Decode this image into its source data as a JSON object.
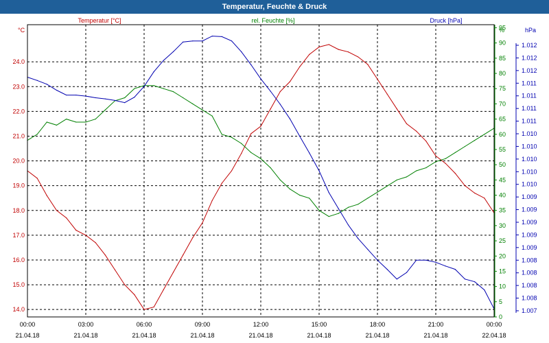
{
  "window": {
    "title": "Temperatur, Feuchte & Druck"
  },
  "chart_data": {
    "type": "line",
    "title": "Temperatur, Feuchte & Druck",
    "x": {
      "start_hour": 0,
      "end_hour": 24,
      "ticks": [
        {
          "hour": 0,
          "time": "00:00",
          "date": "21.04.18"
        },
        {
          "hour": 3,
          "time": "03:00",
          "date": "21.04.18"
        },
        {
          "hour": 6,
          "time": "06:00",
          "date": "21.04.18"
        },
        {
          "hour": 9,
          "time": "09:00",
          "date": "21.04.18"
        },
        {
          "hour": 12,
          "time": "12:00",
          "date": "21.04.18"
        },
        {
          "hour": 15,
          "time": "15:00",
          "date": "21.04.18"
        },
        {
          "hour": 18,
          "time": "18:00",
          "date": "21.04.18"
        },
        {
          "hour": 21,
          "time": "21:00",
          "date": "21.04.18"
        },
        {
          "hour": 24,
          "time": "00:00",
          "date": "22.04.18"
        }
      ]
    },
    "axes": {
      "temperature": {
        "unit": "°C",
        "label": "Temperatur [°C]",
        "color": "#c00000",
        "range": [
          13.7,
          25.5
        ],
        "ticks": [
          "14.0",
          "15.0",
          "16.0",
          "17.0",
          "18.0",
          "19.0",
          "20.0",
          "21.0",
          "22.0",
          "23.0",
          "24.0"
        ]
      },
      "humidity": {
        "unit": "%",
        "label": "rel. Feuchte [%]",
        "color": "#008000",
        "range": [
          0,
          96
        ],
        "ticks": [
          "0",
          "5",
          "10",
          "15",
          "20",
          "25",
          "30",
          "35",
          "40",
          "45",
          "50",
          "55",
          "60",
          "65",
          "70",
          "75",
          "80",
          "85",
          "90",
          "95"
        ]
      },
      "pressure": {
        "unit": "hPa",
        "label": "Druck [hPa]",
        "color": "#0000b0",
        "range": [
          1006.9,
          1012.3
        ],
        "ticks": [
          "1.007",
          "1.008",
          "1.008",
          "1.008",
          "1.008",
          "1.009",
          "1.009",
          "1.009",
          "1.009",
          "1.009",
          "1.010",
          "1.010",
          "1.010",
          "1.010",
          "1.010",
          "1.011",
          "1.011",
          "1.011",
          "1.011",
          "1.012",
          "1.012",
          "1.012"
        ]
      }
    },
    "series": [
      {
        "name": "Temperatur [°C]",
        "axis": "temperature",
        "color": "#c00000",
        "x_hours": [
          0,
          0.5,
          1,
          1.5,
          2,
          2.5,
          3,
          3.5,
          4,
          4.5,
          5,
          5.5,
          6,
          6.5,
          7,
          7.5,
          8,
          8.5,
          9,
          9.5,
          10,
          10.5,
          11,
          11.5,
          12,
          12.5,
          13,
          13.5,
          14,
          14.5,
          15,
          15.5,
          16,
          16.5,
          17,
          17.5,
          18,
          18.5,
          19,
          19.5,
          20,
          20.5,
          21,
          21.5,
          22,
          22.5,
          23,
          23.5,
          24
        ],
        "values": [
          19.6,
          19.3,
          18.6,
          18.0,
          17.7,
          17.2,
          17.0,
          16.7,
          16.2,
          15.6,
          15.0,
          14.6,
          14.0,
          14.1,
          14.8,
          15.5,
          16.2,
          16.9,
          17.5,
          18.4,
          19.1,
          19.6,
          20.3,
          21.1,
          21.4,
          22.1,
          22.8,
          23.2,
          23.8,
          24.3,
          24.6,
          24.7,
          24.5,
          24.4,
          24.2,
          23.9,
          23.3,
          22.7,
          22.1,
          21.5,
          21.2,
          20.8,
          20.2,
          19.9,
          19.5,
          19.0,
          18.7,
          18.5,
          17.9
        ]
      },
      {
        "name": "rel. Feuchte [%]",
        "axis": "humidity",
        "color": "#008000",
        "x_hours": [
          0,
          0.5,
          1,
          1.5,
          2,
          2.5,
          3,
          3.5,
          4,
          4.5,
          5,
          5.5,
          6,
          6.5,
          7,
          7.5,
          8,
          8.5,
          9,
          9.5,
          10,
          10.5,
          11,
          11.5,
          12,
          12.5,
          13,
          13.5,
          14,
          14.5,
          15,
          15.5,
          16,
          16.5,
          17,
          17.5,
          18,
          18.5,
          19,
          19.5,
          20,
          20.5,
          21,
          21.5,
          22,
          22.5,
          23,
          23.5,
          24
        ],
        "values": [
          58,
          60,
          64,
          63,
          65,
          64,
          64,
          65,
          68,
          71,
          72,
          75,
          76,
          76,
          75,
          74,
          72,
          70,
          68,
          66,
          60,
          59,
          57,
          54,
          52,
          49,
          45,
          42,
          40,
          39,
          35,
          33,
          34,
          36,
          37,
          39,
          41,
          43,
          45,
          46,
          48,
          49,
          51,
          52,
          54,
          56,
          58,
          60,
          62
        ]
      },
      {
        "name": "Druck [hPa]",
        "axis": "pressure",
        "color": "#0000b0",
        "x_hours": [
          0,
          0.5,
          1,
          1.5,
          2,
          2.5,
          3,
          3.5,
          4,
          4.5,
          5,
          5.5,
          6,
          6.5,
          7,
          7.5,
          8,
          8.5,
          9,
          9.5,
          10,
          10.5,
          11,
          11.5,
          12,
          12.5,
          13,
          13.5,
          14,
          14.5,
          15,
          15.5,
          16,
          16.5,
          17,
          17.5,
          18,
          18.5,
          19,
          19.5,
          20,
          20.5,
          21,
          21.5,
          22,
          22.5,
          23,
          23.5,
          24
        ],
        "values": [
          1011.33,
          1011.27,
          1011.2,
          1011.09,
          1011.0,
          1011.0,
          1010.98,
          1010.95,
          1010.93,
          1010.9,
          1010.86,
          1010.96,
          1011.16,
          1011.43,
          1011.64,
          1011.8,
          1011.98,
          1012.0,
          1012.0,
          1012.09,
          1012.08,
          1012.0,
          1011.8,
          1011.56,
          1011.3,
          1011.07,
          1010.83,
          1010.56,
          1010.24,
          1009.93,
          1009.6,
          1009.2,
          1008.9,
          1008.6,
          1008.35,
          1008.15,
          1007.95,
          1007.78,
          1007.6,
          1007.72,
          1007.95,
          1007.95,
          1007.91,
          1007.84,
          1007.78,
          1007.6,
          1007.55,
          1007.4,
          1007.05
        ]
      }
    ]
  }
}
